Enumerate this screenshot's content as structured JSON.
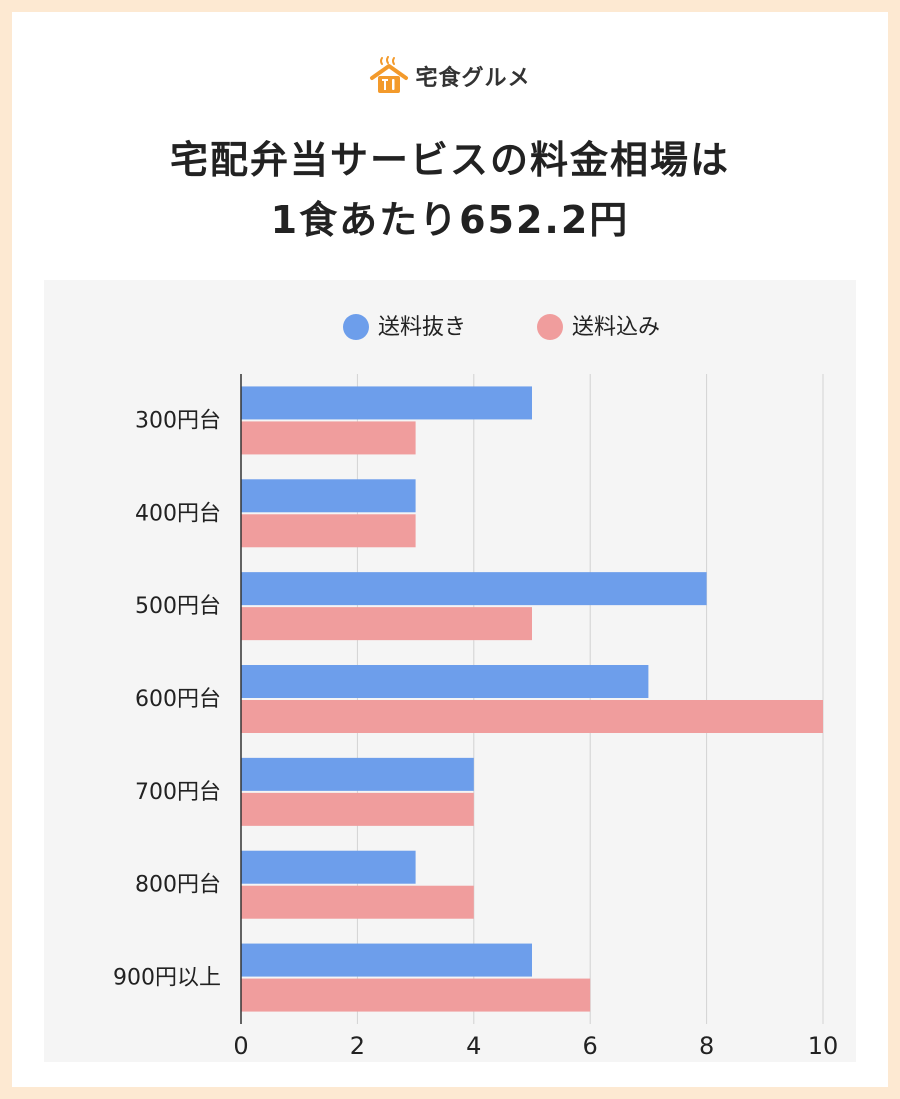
{
  "brand": {
    "name": "宅食グルメ",
    "logo_icon": "house-with-fork-knife-icon",
    "accent_color": "#f39a2b"
  },
  "headline": {
    "line1": "宅配弁当サービスの料金相場は",
    "line2": "1食あたり652.2円"
  },
  "chart_data": {
    "type": "bar",
    "orientation": "horizontal",
    "categories": [
      "300円台",
      "400円台",
      "500円台",
      "600円台",
      "700円台",
      "800円台",
      "900円以上"
    ],
    "series": [
      {
        "name": "送料抜き",
        "values": [
          5,
          3,
          8,
          7,
          4,
          3,
          5
        ],
        "color": "#6d9eeb"
      },
      {
        "name": "送料込み",
        "values": [
          3,
          3,
          5,
          10,
          4,
          4,
          6
        ],
        "color": "#f09d9d"
      }
    ],
    "xlim": [
      0,
      10
    ],
    "xticks": [
      0,
      2,
      4,
      6,
      8,
      10
    ],
    "legend_position": "top-center",
    "grid": "vertical"
  }
}
